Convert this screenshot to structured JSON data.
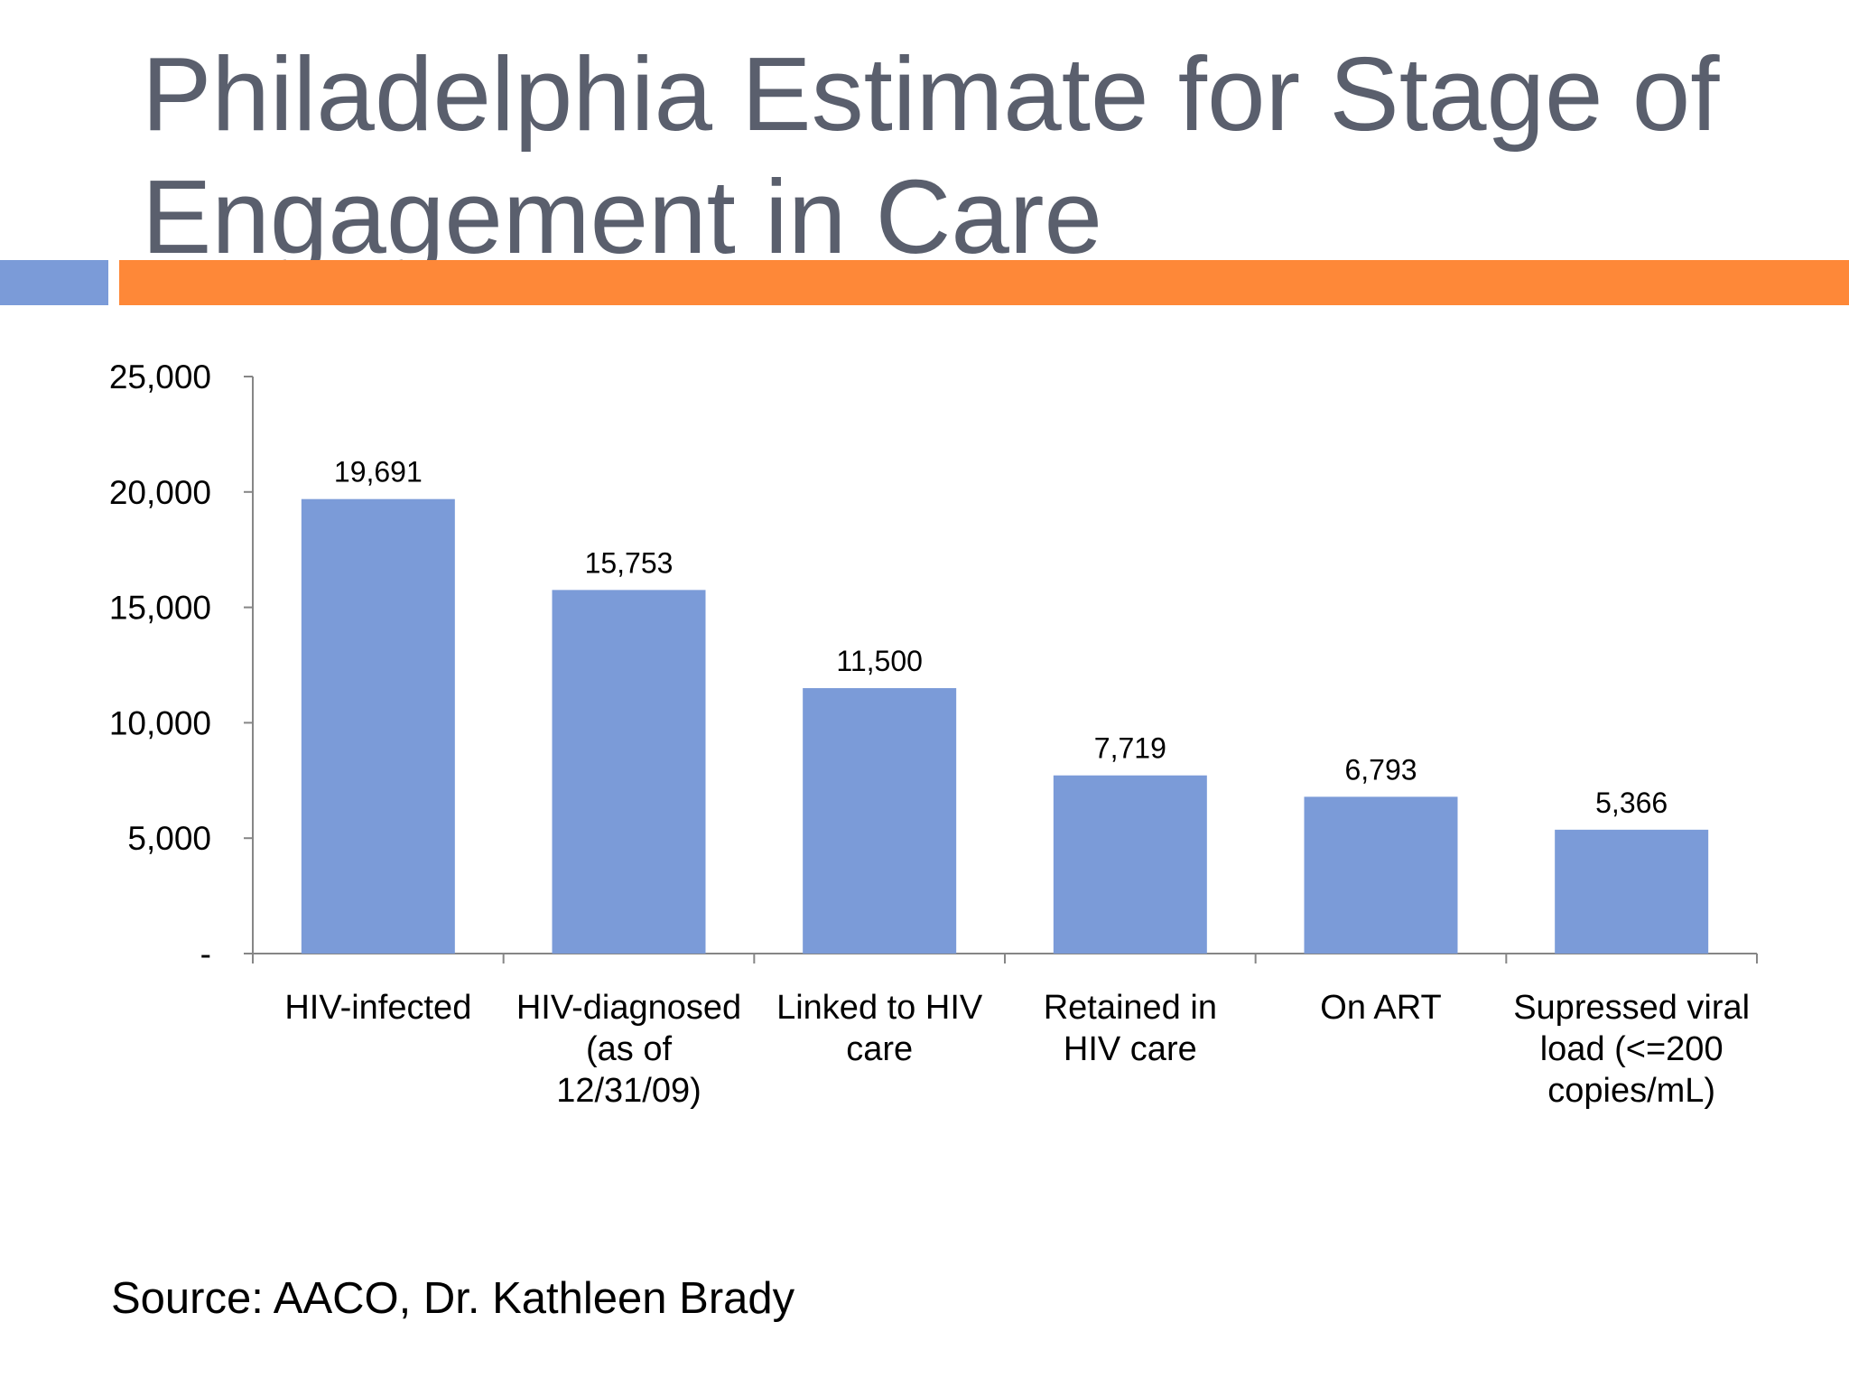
{
  "slide": {
    "title_line1": "Philadelphia Estimate for Stage of",
    "title_line2": "Engagement in Care",
    "source": "Source: AACO, Dr. Kathleen Brady",
    "accent_colors": {
      "title_text": "#5a5f6d",
      "rule_blue": "#7b9bd8",
      "rule_orange": "#fe8838",
      "bar_fill": "#7b9bd8"
    }
  },
  "chart_data": {
    "type": "bar",
    "title": "",
    "xlabel": "",
    "ylabel": "",
    "ylim": [
      0,
      25000
    ],
    "grid": false,
    "legend": "none",
    "y_ticks": [
      0,
      5000,
      10000,
      15000,
      20000,
      25000
    ],
    "y_tick_labels": [
      "-",
      "5,000",
      "10,000",
      "15,000",
      "20,000",
      "25,000"
    ],
    "categories": [
      [
        "HIV-infected"
      ],
      [
        "HIV-diagnosed",
        "(as of",
        "12/31/09)"
      ],
      [
        "Linked to HIV",
        "care"
      ],
      [
        "Retained in",
        "HIV care"
      ],
      [
        "On ART"
      ],
      [
        "Supressed viral",
        "load (<=200",
        "copies/mL)"
      ]
    ],
    "values": [
      19691,
      15753,
      11500,
      7719,
      6793,
      5366
    ],
    "value_labels": [
      "19,691",
      "15,753",
      "11,500",
      "7,719",
      "6,793",
      "5,366"
    ]
  }
}
